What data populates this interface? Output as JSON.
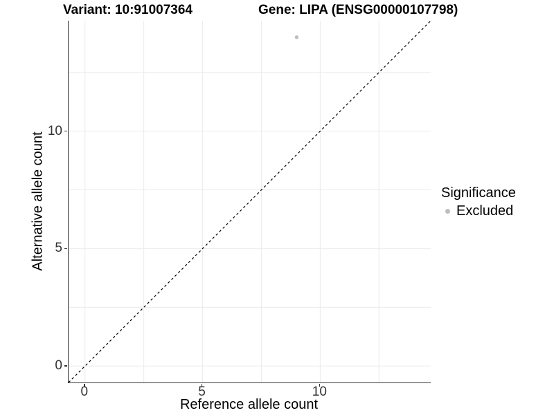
{
  "chart_data": {
    "type": "scatter",
    "title_left": "Variant: 10:91007364",
    "title_right": "Gene: LIPA (ENSG00000107798)",
    "xlabel": "Reference allele count",
    "ylabel": "Alternative allele count",
    "xlim": [
      -0.7,
      14.7
    ],
    "ylim": [
      -0.7,
      14.7
    ],
    "x_ticks": [
      0,
      5,
      10
    ],
    "y_ticks": [
      0,
      5,
      10
    ],
    "grid": {
      "show": true,
      "values": [
        0,
        2.5,
        5,
        7.5,
        10,
        12.5
      ],
      "color": "#ebebeb"
    },
    "reference_line": {
      "type": "identity y=x",
      "style": "dashed",
      "color": "#000000"
    },
    "points": [
      {
        "x": 9,
        "y": 14,
        "series": "Excluded",
        "color": "#bebebe",
        "radius": 2.7
      }
    ],
    "legend": {
      "title": "Significance",
      "position": "right",
      "entries": [
        {
          "label": "Excluded",
          "color": "#bebebe"
        }
      ]
    },
    "axis_line_color": "#333333",
    "tick_label_color": "#333333",
    "background_color": "#ffffff"
  }
}
